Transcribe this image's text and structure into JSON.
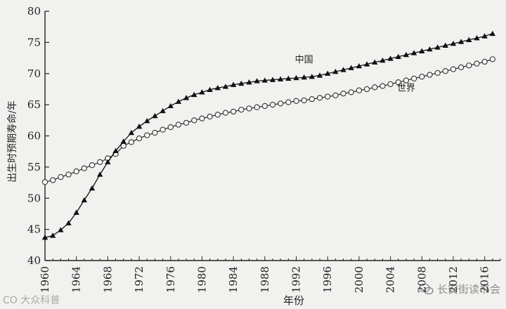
{
  "chart_data": {
    "type": "line",
    "title": "",
    "xlabel": "年份",
    "ylabel": "出生时预期寿命/年",
    "xlim": [
      1960,
      2018
    ],
    "ylim": [
      40,
      80
    ],
    "xticks": [
      1960,
      1964,
      1968,
      1972,
      1976,
      1980,
      1984,
      1988,
      1992,
      1996,
      2000,
      2004,
      2008,
      2012,
      2016
    ],
    "yticks": [
      40,
      45,
      50,
      55,
      60,
      65,
      70,
      75,
      80
    ],
    "x": [
      1960,
      1961,
      1962,
      1963,
      1964,
      1965,
      1966,
      1967,
      1968,
      1969,
      1970,
      1971,
      1972,
      1973,
      1974,
      1975,
      1976,
      1977,
      1978,
      1979,
      1980,
      1981,
      1982,
      1983,
      1984,
      1985,
      1986,
      1987,
      1988,
      1989,
      1990,
      1991,
      1992,
      1993,
      1994,
      1995,
      1996,
      1997,
      1998,
      1999,
      2000,
      2001,
      2002,
      2003,
      2004,
      2005,
      2006,
      2007,
      2008,
      2009,
      2010,
      2011,
      2012,
      2013,
      2014,
      2015,
      2016,
      2017
    ],
    "series": [
      {
        "name": "中国",
        "marker": "filled-triangle",
        "values": [
          43.7,
          44.0,
          44.9,
          46.0,
          47.7,
          49.7,
          51.6,
          53.8,
          55.8,
          57.6,
          59.1,
          60.5,
          61.5,
          62.4,
          63.2,
          64.0,
          64.8,
          65.5,
          66.1,
          66.6,
          67.0,
          67.4,
          67.7,
          67.9,
          68.2,
          68.4,
          68.6,
          68.8,
          68.9,
          69.0,
          69.1,
          69.2,
          69.3,
          69.4,
          69.5,
          69.7,
          70.0,
          70.3,
          70.6,
          70.9,
          71.2,
          71.5,
          71.8,
          72.1,
          72.4,
          72.7,
          73.0,
          73.3,
          73.6,
          73.9,
          74.2,
          74.5,
          74.8,
          75.1,
          75.4,
          75.7,
          76.0,
          76.4
        ]
      },
      {
        "name": "世界",
        "marker": "open-circle",
        "values": [
          52.6,
          52.9,
          53.4,
          53.8,
          54.3,
          54.8,
          55.3,
          55.8,
          56.4,
          57.1,
          58.4,
          59.0,
          59.6,
          60.1,
          60.5,
          61.0,
          61.4,
          61.8,
          62.1,
          62.5,
          62.8,
          63.1,
          63.4,
          63.7,
          63.9,
          64.2,
          64.4,
          64.6,
          64.8,
          65.0,
          65.2,
          65.4,
          65.6,
          65.7,
          65.9,
          66.1,
          66.3,
          66.5,
          66.8,
          67.0,
          67.3,
          67.5,
          67.8,
          68.0,
          68.3,
          68.6,
          68.9,
          69.2,
          69.5,
          69.8,
          70.1,
          70.4,
          70.7,
          71.0,
          71.3,
          71.6,
          71.9,
          72.3
        ]
      }
    ],
    "annotations": [
      {
        "text": "中国",
        "x": 1993,
        "y": 71.8
      },
      {
        "text": "世界",
        "x": 2006,
        "y": 67.2
      }
    ]
  },
  "watermarks": {
    "left": "CO 大众科普",
    "right": "长安街读书会"
  },
  "colors": {
    "series_china": "#111111",
    "series_world": "#333333",
    "axis": "#222222",
    "background": "#f1f1ef"
  }
}
